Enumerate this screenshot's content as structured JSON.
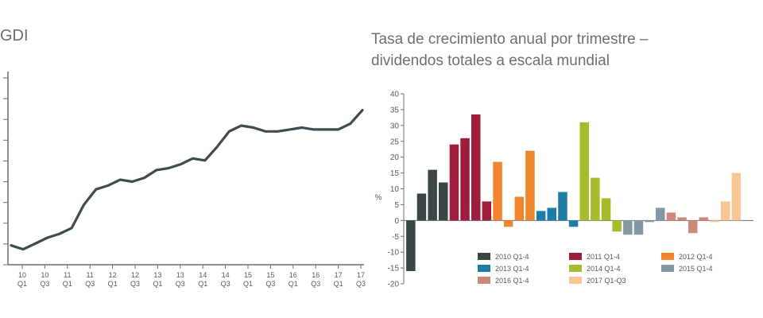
{
  "chart_data": [
    {
      "type": "line",
      "title": "GDI",
      "x_ticks": [
        [
          "10",
          "Q1"
        ],
        [
          "10",
          "Q3"
        ],
        [
          "11",
          "Q1"
        ],
        [
          "11",
          "Q3"
        ],
        [
          "12",
          "Q1"
        ],
        [
          "12",
          "Q3"
        ],
        [
          "13",
          "Q1"
        ],
        [
          "13",
          "Q3"
        ],
        [
          "14",
          "Q1"
        ],
        [
          "14",
          "Q3"
        ],
        [
          "15",
          "Q1"
        ],
        [
          "15",
          "Q3"
        ],
        [
          "16",
          "Q1"
        ],
        [
          "16",
          "Q3"
        ],
        [
          "17",
          "Q1"
        ],
        [
          "17",
          "Q3"
        ]
      ],
      "series": [
        {
          "color": "#3e4c4f",
          "values": [
            0.1,
            0.08,
            0.11,
            0.14,
            0.16,
            0.19,
            0.31,
            0.39,
            0.41,
            0.44,
            0.43,
            0.45,
            0.49,
            0.5,
            0.52,
            0.55,
            0.54,
            0.61,
            0.69,
            0.72,
            0.71,
            0.69,
            0.69,
            0.7,
            0.71,
            0.7,
            0.7,
            0.7,
            0.73,
            0.8
          ]
        }
      ],
      "grid": false,
      "legend": "none"
    },
    {
      "type": "bar",
      "title_lines": [
        "Tasa de crecimiento anual por trimestre –",
        "dividendos totales a escala mundial"
      ],
      "ylabel": "%",
      "ylim": [
        -20,
        40
      ],
      "y_ticks": [
        40,
        35,
        30,
        25,
        20,
        15,
        10,
        5,
        0,
        -5,
        -10,
        -15,
        -20
      ],
      "grid": false,
      "legend": "bottom-right",
      "series": [
        {
          "name": "2010 Q1-4",
          "color": "#3b4647",
          "values": [
            -16,
            8.5,
            16,
            12
          ]
        },
        {
          "name": "2011 Q1-4",
          "color": "#a01c3c",
          "values": [
            24,
            26,
            33.5,
            6
          ]
        },
        {
          "name": "2012 Q1-4",
          "color": "#f0852d",
          "values": [
            18.5,
            -2,
            7.5,
            22
          ]
        },
        {
          "name": "2013 Q1-4",
          "color": "#1d7da7",
          "values": [
            3,
            4,
            9,
            -2
          ]
        },
        {
          "name": "2014 Q1-4",
          "color": "#a8bc2b",
          "values": [
            31,
            13.5,
            7,
            -3.5
          ]
        },
        {
          "name": "2015 Q1-4",
          "color": "#8298a3",
          "values": [
            -4.5,
            -4.5,
            -0.5,
            4
          ]
        },
        {
          "name": "2016 Q1-4",
          "color": "#cc8878",
          "values": [
            2.5,
            1,
            -4,
            1
          ]
        },
        {
          "name": "2017 Q1-Q3",
          "color": "#f8c594",
          "values": [
            -0.5,
            6,
            15
          ]
        }
      ]
    }
  ]
}
